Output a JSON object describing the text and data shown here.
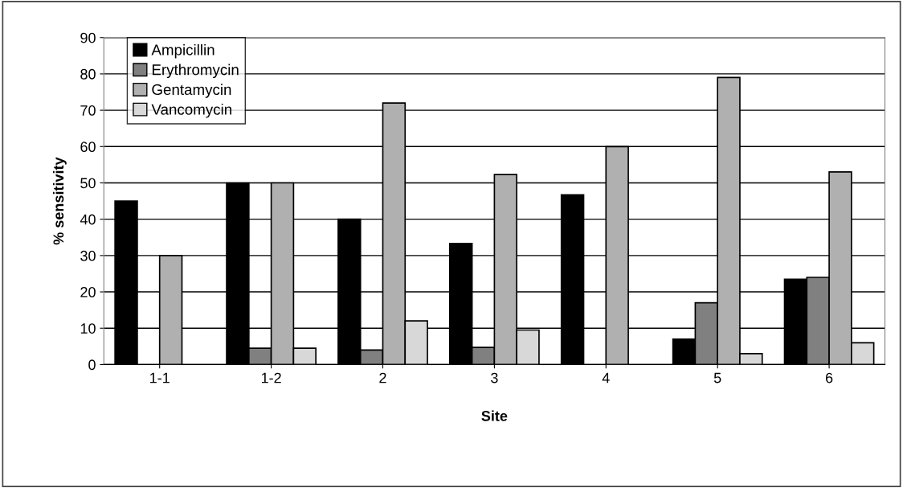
{
  "chart_data": {
    "type": "bar",
    "xlabel": "Site",
    "ylabel": "% sensitivity",
    "categories": [
      "1-1",
      "1-2",
      "2",
      "3",
      "4",
      "5",
      "6"
    ],
    "series": [
      {
        "name": "Ampicillin",
        "color": "#000000",
        "values": [
          45,
          50,
          40,
          33.3,
          46.7,
          7,
          23.5
        ]
      },
      {
        "name": "Erythromycin",
        "color": "#808080",
        "values": [
          0,
          4.5,
          4,
          4.7,
          0,
          17,
          24
        ]
      },
      {
        "name": "Gentamycin",
        "color": "#b0b0b0",
        "values": [
          30,
          50,
          72,
          52.3,
          60,
          79,
          53
        ]
      },
      {
        "name": "Vancomycin",
        "color": "#d8d8d8",
        "values": [
          0,
          4.5,
          12,
          9.5,
          0,
          3,
          6
        ]
      }
    ],
    "ylim": [
      0,
      90
    ],
    "yticks": [
      0,
      10,
      20,
      30,
      40,
      50,
      60,
      70,
      80,
      90
    ],
    "grid": "y",
    "legend": "top left"
  }
}
